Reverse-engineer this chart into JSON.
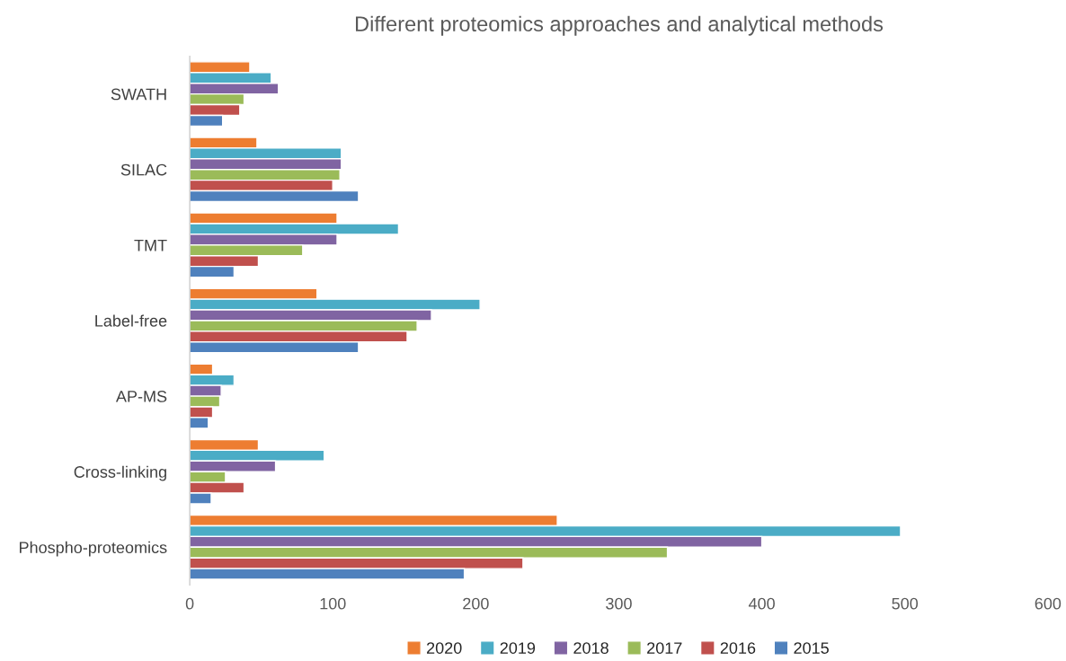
{
  "chart_data": {
    "type": "bar",
    "orientation": "horizontal",
    "title": "Different proteomics approaches and analytical methods",
    "categories": [
      "SWATH",
      "SILAC",
      "TMT",
      "Label-free",
      "AP-MS",
      "Cross-linking",
      "Phospho-proteomics"
    ],
    "series": [
      {
        "name": "2020",
        "color": "#ed7d31",
        "values": [
          42,
          47,
          103,
          89,
          16,
          48,
          257
        ]
      },
      {
        "name": "2019",
        "color": "#4bacc6",
        "values": [
          57,
          106,
          146,
          203,
          31,
          94,
          497
        ]
      },
      {
        "name": "2018",
        "color": "#8064a2",
        "values": [
          62,
          106,
          103,
          169,
          22,
          60,
          400
        ]
      },
      {
        "name": "2017",
        "color": "#9bbb59",
        "values": [
          38,
          105,
          79,
          159,
          21,
          25,
          334
        ]
      },
      {
        "name": "2016",
        "color": "#c0504d",
        "values": [
          35,
          100,
          48,
          152,
          16,
          38,
          233
        ]
      },
      {
        "name": "2015",
        "color": "#4f81bd",
        "values": [
          23,
          118,
          31,
          118,
          13,
          15,
          192
        ]
      }
    ],
    "xlim": [
      0,
      600
    ],
    "xticks": [
      0,
      100,
      200,
      300,
      400,
      500,
      600
    ],
    "grid": false,
    "legend": "bottom"
  }
}
